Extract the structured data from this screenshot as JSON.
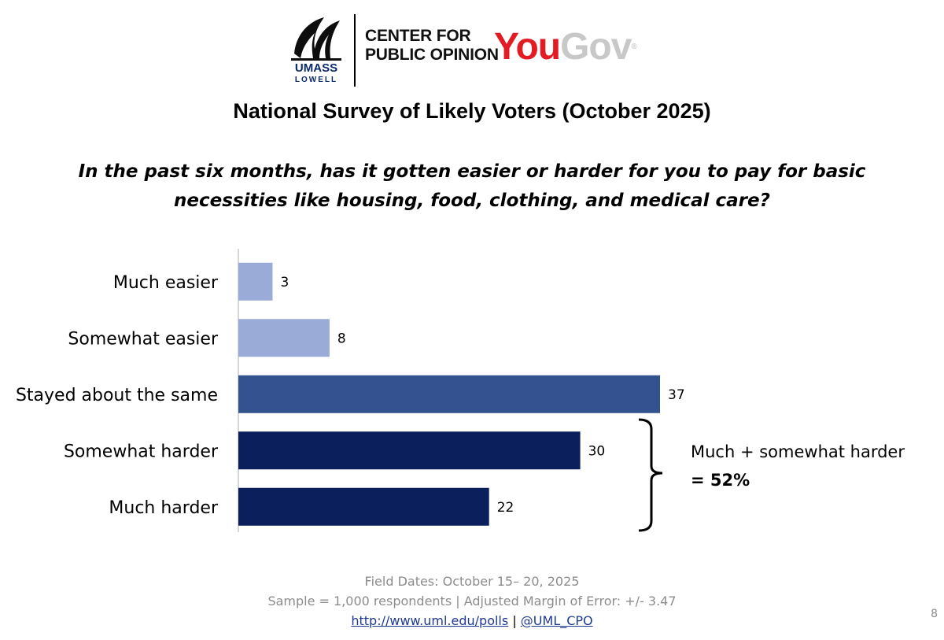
{
  "header": {
    "umass": "UMASS",
    "lowell": "LOWELL",
    "cpo_line1": "CENTER FOR",
    "cpo_line2": "PUBLIC OPINION",
    "yougov_you": "You",
    "yougov_gov": "Gov",
    "yougov_reg": "®"
  },
  "title": "National Survey of Likely Voters (October 2025)",
  "question_line1": "In the past six months, has it gotten easier or harder for you to pay for basic",
  "question_line2": "necessities like housing, food, clothing, and medical care?",
  "chart_data": {
    "type": "bar",
    "orientation": "horizontal",
    "categories": [
      "Much easier",
      "Somewhat easier",
      "Stayed about the same",
      "Somewhat harder",
      "Much harder"
    ],
    "values": [
      3,
      8,
      37,
      30,
      22
    ],
    "colors": [
      "#9aabd8",
      "#9aabd8",
      "#34528f",
      "#0a1f5c",
      "#0a1f5c"
    ],
    "xlim": [
      0,
      40
    ],
    "grid": false,
    "title": "",
    "xlabel": "",
    "ylabel": ""
  },
  "annotation": {
    "line1": "Much + somewhat harder",
    "line2": "= 52%"
  },
  "footer": {
    "field_dates": "Field Dates: October  15– 20, 2025",
    "sample": "Sample = 1,000 respondents | Adjusted Margin of Error: +/- 3.47",
    "url": "http://www.uml.edu/polls",
    "separator": "|",
    "handle": "@UML_CPO"
  },
  "page_number": "8"
}
